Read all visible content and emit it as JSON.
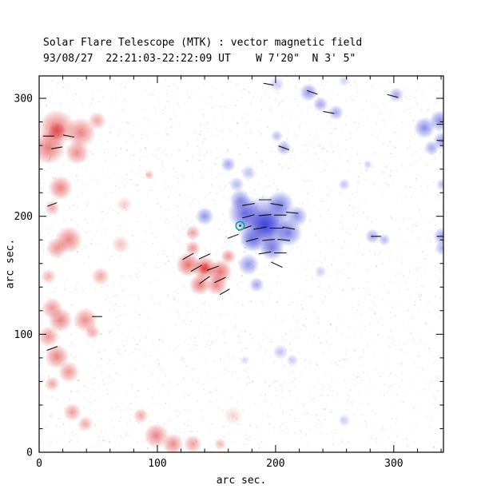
{
  "chart_data": {
    "type": "heatmap",
    "title": "Solar Flare Telescope (MTK) : vector magnetic field",
    "subtitle": "93/08/27  22:21:03-22:22:09 UT    W 7'20\"  N 3' 5\"",
    "xlabel": "arc sec.",
    "ylabel": "arc sec.",
    "xlim": [
      0,
      342
    ],
    "ylim": [
      0,
      319
    ],
    "xticks": [
      0,
      100,
      200,
      300
    ],
    "yticks": [
      0,
      100,
      200,
      300
    ],
    "minor_tick_step": 20,
    "grid": false,
    "legend": "none",
    "polarity_colors": {
      "negative_red": "#e04545",
      "positive_blue": "#4245d8"
    },
    "vector_color": "#000000",
    "noise": {
      "seed": 13,
      "count": 3000,
      "red": "#f3bdbd",
      "blue": "#bdc2f0"
    },
    "blob_format": "[x_arcsec, y_arcsec, radius_arcsec, intensity]",
    "red_blobs": [
      [
        15,
        275,
        12,
        0.75
      ],
      [
        35,
        271,
        10,
        0.7
      ],
      [
        8,
        258,
        11,
        0.75
      ],
      [
        32,
        254,
        8,
        0.65
      ],
      [
        49,
        281,
        6,
        0.5
      ],
      [
        15,
        272,
        6,
        0.95
      ],
      [
        18,
        224,
        8,
        0.7
      ],
      [
        11,
        207,
        5,
        0.5
      ],
      [
        25,
        180,
        9,
        0.7
      ],
      [
        15,
        173,
        7,
        0.6
      ],
      [
        8,
        149,
        5,
        0.45
      ],
      [
        52,
        149,
        6,
        0.5
      ],
      [
        11,
        122,
        7,
        0.6
      ],
      [
        18,
        112,
        8,
        0.7
      ],
      [
        8,
        98,
        7,
        0.6
      ],
      [
        15,
        81,
        8,
        0.7
      ],
      [
        25,
        68,
        7,
        0.6
      ],
      [
        11,
        58,
        5,
        0.5
      ],
      [
        39,
        112,
        8,
        0.65
      ],
      [
        45,
        102,
        5,
        0.5
      ],
      [
        28,
        34,
        6,
        0.55
      ],
      [
        39,
        24,
        5,
        0.5
      ],
      [
        86,
        31,
        5,
        0.5
      ],
      [
        99,
        14,
        8,
        0.7
      ],
      [
        113,
        7,
        7,
        0.65
      ],
      [
        130,
        7,
        6,
        0.55
      ],
      [
        153,
        7,
        4,
        0.4
      ],
      [
        126,
        159,
        8,
        0.8
      ],
      [
        140,
        156,
        8,
        0.85
      ],
      [
        153,
        153,
        8,
        0.8
      ],
      [
        136,
        142,
        7,
        0.75
      ],
      [
        150,
        142,
        7,
        0.7
      ],
      [
        130,
        173,
        5,
        0.6
      ],
      [
        160,
        166,
        5,
        0.6
      ],
      [
        140,
        156,
        4,
        1
      ],
      [
        130,
        186,
        5,
        0.55
      ],
      [
        93,
        235,
        3,
        0.45
      ],
      [
        69,
        176,
        6,
        0.35
      ],
      [
        72,
        210,
        5,
        0.3
      ],
      [
        164,
        31,
        6,
        0.25
      ]
    ],
    "blue_blobs": [
      [
        191,
        193,
        19,
        0.8
      ],
      [
        191,
        193,
        10,
        1
      ],
      [
        174,
        203,
        11,
        0.8
      ],
      [
        204,
        210,
        9,
        0.7
      ],
      [
        211,
        186,
        9,
        0.7
      ],
      [
        197,
        173,
        8,
        0.7
      ],
      [
        180,
        180,
        8,
        0.7
      ],
      [
        177,
        159,
        7,
        0.6
      ],
      [
        184,
        142,
        5,
        0.5
      ],
      [
        170,
        214,
        7,
        0.6
      ],
      [
        218,
        200,
        7,
        0.6
      ],
      [
        140,
        200,
        6,
        0.6
      ],
      [
        160,
        244,
        5,
        0.5
      ],
      [
        167,
        227,
        5,
        0.4
      ],
      [
        177,
        237,
        5,
        0.35
      ],
      [
        207,
        258,
        5,
        0.5
      ],
      [
        201,
        268,
        4,
        0.4
      ],
      [
        228,
        305,
        6,
        0.6
      ],
      [
        238,
        295,
        5,
        0.5
      ],
      [
        251,
        288,
        5,
        0.5
      ],
      [
        302,
        303,
        5,
        0.5
      ],
      [
        326,
        275,
        7,
        0.65
      ],
      [
        339,
        281,
        7,
        0.65
      ],
      [
        341,
        264,
        6,
        0.6
      ],
      [
        332,
        258,
        5,
        0.5
      ],
      [
        341,
        227,
        4,
        0.4
      ],
      [
        282,
        183,
        5,
        0.5
      ],
      [
        292,
        180,
        4,
        0.4
      ],
      [
        341,
        183,
        6,
        0.55
      ],
      [
        341,
        173,
        5,
        0.45
      ],
      [
        258,
        227,
        4,
        0.35
      ],
      [
        278,
        244,
        3,
        0.3
      ],
      [
        204,
        85,
        5,
        0.35
      ],
      [
        214,
        78,
        4,
        0.3
      ],
      [
        258,
        27,
        4,
        0.3
      ],
      [
        174,
        78,
        3,
        0.25
      ],
      [
        238,
        153,
        4,
        0.3
      ],
      [
        201,
        312,
        5,
        0.3
      ],
      [
        258,
        315,
        4,
        0.25
      ]
    ],
    "vector_format": "[x_arcsec, y_arcsec, angle_deg, length_arcsec]",
    "vectors": [
      [
        177,
        210,
        10,
        10
      ],
      [
        191,
        214,
        0,
        10
      ],
      [
        201,
        210,
        -10,
        10
      ],
      [
        177,
        200,
        15,
        10
      ],
      [
        191,
        201,
        5,
        10
      ],
      [
        204,
        201,
        0,
        10
      ],
      [
        214,
        203,
        -5,
        10
      ],
      [
        174,
        190,
        20,
        11
      ],
      [
        187,
        190,
        10,
        11
      ],
      [
        201,
        190,
        0,
        11
      ],
      [
        211,
        190,
        -10,
        10
      ],
      [
        180,
        180,
        15,
        10
      ],
      [
        194,
        180,
        5,
        10
      ],
      [
        207,
        180,
        -5,
        10
      ],
      [
        191,
        169,
        10,
        10
      ],
      [
        204,
        169,
        0,
        10
      ],
      [
        201,
        159,
        -25,
        10
      ],
      [
        164,
        183,
        20,
        9
      ],
      [
        126,
        166,
        30,
        10
      ],
      [
        140,
        166,
        25,
        10
      ],
      [
        133,
        156,
        30,
        10
      ],
      [
        147,
        156,
        20,
        10
      ],
      [
        140,
        146,
        35,
        10
      ],
      [
        153,
        146,
        25,
        10
      ],
      [
        157,
        136,
        30,
        9
      ],
      [
        8,
        268,
        0,
        9
      ],
      [
        25,
        268,
        -10,
        9
      ],
      [
        15,
        258,
        10,
        9
      ],
      [
        11,
        210,
        20,
        8
      ],
      [
        11,
        88,
        20,
        9
      ],
      [
        49,
        115,
        0,
        8
      ],
      [
        231,
        305,
        -20,
        9
      ],
      [
        245,
        288,
        -10,
        9
      ],
      [
        299,
        302,
        -15,
        9
      ],
      [
        341,
        278,
        0,
        9
      ],
      [
        341,
        264,
        -5,
        9
      ],
      [
        285,
        183,
        0,
        8
      ],
      [
        341,
        183,
        0,
        9
      ],
      [
        207,
        258,
        -20,
        9
      ],
      [
        194,
        312,
        -10,
        8
      ]
    ],
    "marker": {
      "x": 170,
      "y": 192,
      "radius_px": 5,
      "color": "#00a690",
      "dot_color": "#00564a"
    }
  }
}
